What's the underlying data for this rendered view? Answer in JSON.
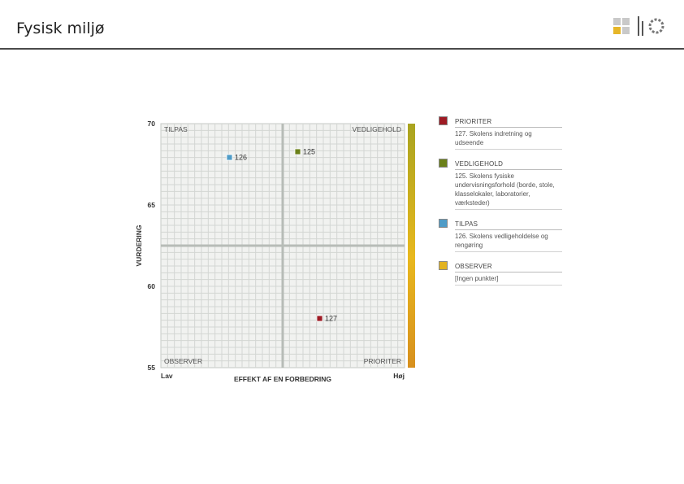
{
  "header": {
    "title": "Fysisk miljø"
  },
  "colors": {
    "prioriter": "#9e1b24",
    "vedligehold": "#6b8019",
    "tilpas": "#4f9cc7",
    "observer": "#e2b322",
    "grid": "#d3d6d3",
    "quadrant_line": "#b7bcb7",
    "background": "#f1f2f0"
  },
  "chart_data": {
    "type": "scatter",
    "xlabel": "EFFEKT AF EN FORBEDRING",
    "ylabel": "VURDERING",
    "x_low_label": "Lav",
    "x_high_label": "Høj",
    "ylim": [
      55,
      70
    ],
    "xlim": [
      0,
      1
    ],
    "y_ticks": [
      70,
      65,
      60,
      55
    ],
    "grid": true,
    "quadrant_labels": {
      "top_left": "TILPAS",
      "top_right": "VEDLIGEHOLD",
      "bottom_left": "OBSERVER",
      "bottom_right": "PRIORITER"
    },
    "points": [
      {
        "label": "126",
        "x": 0.28,
        "y": 67.95,
        "category": "tilpas"
      },
      {
        "label": "125",
        "x": 0.56,
        "y": 68.3,
        "category": "vedligehold"
      },
      {
        "label": "127",
        "x": 0.65,
        "y": 58.05,
        "category": "prioriter"
      }
    ]
  },
  "legend": {
    "items": [
      {
        "name": "PRIORITER",
        "desc": "127. Skolens indretning og udseende",
        "color": "#9e1b24"
      },
      {
        "name": "VEDLIGEHOLD",
        "desc": "125. Skolens fysiske undervisningsforhold (borde, stole, klasselokaler, laboratorier, værksteder)",
        "color": "#6b8019"
      },
      {
        "name": "TILPAS",
        "desc": "126. Skolens vedligeholdelse og rengøring",
        "color": "#4f9cc7"
      },
      {
        "name": "OBSERVER",
        "desc": "[Ingen punkter]",
        "color": "#e2b322"
      }
    ]
  }
}
